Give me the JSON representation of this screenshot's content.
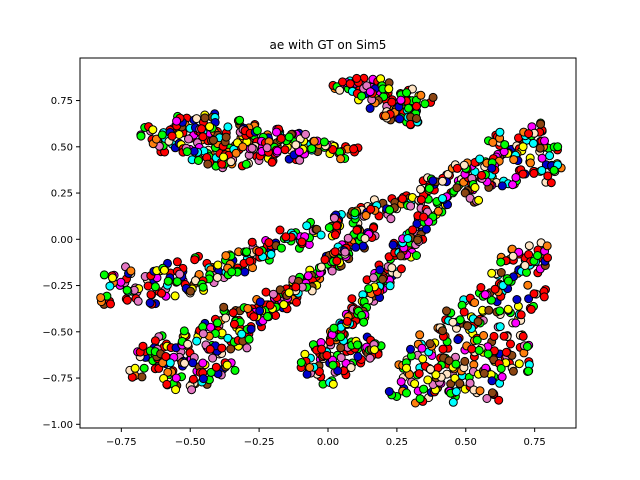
{
  "chart_data": {
    "type": "scatter",
    "title": "ae with GT on Sim5",
    "xlabel": "",
    "ylabel": "",
    "xlim": [
      -0.9,
      0.9
    ],
    "ylim": [
      -1.02,
      0.98
    ],
    "x_ticks": [
      -0.75,
      -0.5,
      -0.25,
      0.0,
      0.25,
      0.5,
      0.75
    ],
    "x_tick_labels": [
      "−0.75",
      "−0.50",
      "−0.25",
      "0.00",
      "0.25",
      "0.50",
      "0.75"
    ],
    "y_ticks": [
      -1.0,
      -0.75,
      -0.5,
      -0.25,
      0.0,
      0.25,
      0.5,
      0.75
    ],
    "y_tick_labels": [
      "−1.00",
      "−0.75",
      "−0.50",
      "−0.25",
      "0.00",
      "0.25",
      "0.50",
      "0.75"
    ],
    "grid": false,
    "legend": "none",
    "marker_edge_color": "#000000",
    "palette": [
      "#ff0000",
      "#00ff00",
      "#0000cc",
      "#ff00ff",
      "#00ffff",
      "#ffff00",
      "#ff7f0e",
      "#8b4513",
      "#e377c2",
      "#ffe4c4",
      "#ff0000",
      "#ff0000",
      "#00ff00"
    ],
    "clusters": [
      {
        "points": [
          [
            -0.62,
            0.56
          ],
          [
            -0.55,
            0.6
          ],
          [
            -0.48,
            0.55
          ],
          [
            -0.4,
            0.58
          ],
          [
            -0.32,
            0.55
          ],
          [
            -0.24,
            0.53
          ],
          [
            -0.15,
            0.52
          ],
          [
            -0.05,
            0.5
          ],
          [
            0.05,
            0.5
          ],
          [
            -0.58,
            0.5
          ],
          [
            -0.45,
            0.48
          ],
          [
            -0.35,
            0.5
          ],
          [
            -0.25,
            0.47
          ],
          [
            -0.12,
            0.46
          ],
          [
            -0.5,
            0.63
          ],
          [
            -0.42,
            0.65
          ],
          [
            -0.3,
            0.6
          ],
          [
            -0.2,
            0.58
          ],
          [
            -0.38,
            0.42
          ],
          [
            -0.28,
            0.43
          ],
          [
            -0.65,
            0.58
          ],
          [
            -0.52,
            0.52
          ],
          [
            -0.44,
            0.61
          ],
          [
            -0.36,
            0.46
          ],
          [
            -0.18,
            0.5
          ],
          [
            -0.08,
            0.55
          ],
          [
            0.0,
            0.48
          ],
          [
            -0.46,
            0.44
          ],
          [
            -0.56,
            0.57
          ],
          [
            -0.33,
            0.62
          ],
          [
            -0.22,
            0.45
          ],
          [
            -0.1,
            0.48
          ],
          [
            -0.6,
            0.53
          ],
          [
            -0.5,
            0.46
          ],
          [
            -0.41,
            0.52
          ],
          [
            -0.3,
            0.52
          ],
          [
            -0.16,
            0.55
          ],
          [
            -0.03,
            0.52
          ],
          [
            0.08,
            0.47
          ],
          [
            -0.53,
            0.64
          ],
          [
            -0.4,
            0.55
          ],
          [
            -0.27,
            0.56
          ],
          [
            -0.47,
            0.58
          ],
          [
            -0.35,
            0.44
          ],
          [
            -0.2,
            0.5
          ]
        ]
      },
      {
        "points": [
          [
            0.05,
            0.82
          ],
          [
            0.1,
            0.85
          ],
          [
            0.15,
            0.8
          ],
          [
            0.2,
            0.78
          ],
          [
            0.25,
            0.72
          ],
          [
            0.28,
            0.65
          ],
          [
            0.3,
            0.7
          ],
          [
            0.18,
            0.74
          ],
          [
            0.12,
            0.82
          ],
          [
            0.22,
            0.68
          ],
          [
            0.32,
            0.63
          ],
          [
            0.08,
            0.86
          ],
          [
            0.26,
            0.76
          ],
          [
            0.3,
            0.78
          ],
          [
            0.16,
            0.84
          ],
          [
            0.24,
            0.66
          ],
          [
            0.2,
            0.82
          ],
          [
            0.28,
            0.72
          ],
          [
            0.35,
            0.75
          ],
          [
            0.14,
            0.78
          ]
        ]
      },
      {
        "points": [
          [
            -0.8,
            -0.32
          ],
          [
            -0.72,
            -0.25
          ],
          [
            -0.65,
            -0.22
          ],
          [
            -0.55,
            -0.15
          ],
          [
            -0.45,
            -0.12
          ],
          [
            -0.35,
            -0.08
          ],
          [
            -0.25,
            -0.04
          ],
          [
            -0.15,
            0.02
          ],
          [
            -0.05,
            0.06
          ],
          [
            0.05,
            0.1
          ],
          [
            0.15,
            0.15
          ],
          [
            0.25,
            0.2
          ],
          [
            0.35,
            0.25
          ],
          [
            0.45,
            0.32
          ],
          [
            0.55,
            0.4
          ],
          [
            0.62,
            0.45
          ],
          [
            0.7,
            0.52
          ],
          [
            0.78,
            0.5
          ],
          [
            0.8,
            0.42
          ],
          [
            0.72,
            0.38
          ],
          [
            0.62,
            0.32
          ],
          [
            0.5,
            0.28
          ],
          [
            0.42,
            0.22
          ],
          [
            -0.75,
            -0.18
          ],
          [
            -0.6,
            -0.28
          ],
          [
            -0.5,
            -0.22
          ],
          [
            -0.4,
            -0.18
          ],
          [
            -0.3,
            -0.12
          ],
          [
            -0.2,
            -0.05
          ],
          [
            -0.1,
            0.0
          ],
          [
            0.0,
            0.05
          ],
          [
            0.1,
            0.12
          ],
          [
            0.2,
            0.18
          ],
          [
            0.3,
            0.22
          ],
          [
            0.4,
            0.28
          ],
          [
            0.5,
            0.35
          ],
          [
            0.6,
            0.42
          ],
          [
            0.68,
            0.48
          ],
          [
            0.75,
            0.56
          ],
          [
            0.82,
            0.4
          ],
          [
            0.66,
            0.3
          ],
          [
            0.55,
            0.3
          ],
          [
            -0.7,
            -0.3
          ],
          [
            -0.62,
            -0.18
          ],
          [
            -0.52,
            -0.28
          ],
          [
            -0.42,
            -0.2
          ],
          [
            -0.33,
            -0.15
          ],
          [
            -0.23,
            -0.08
          ],
          [
            -0.12,
            -0.02
          ],
          [
            0.02,
            0.08
          ],
          [
            0.12,
            0.16
          ],
          [
            0.22,
            0.14
          ],
          [
            0.32,
            0.18
          ],
          [
            0.45,
            0.25
          ],
          [
            0.58,
            0.38
          ],
          [
            0.65,
            0.5
          ],
          [
            0.74,
            0.6
          ],
          [
            0.78,
            0.34
          ],
          [
            0.52,
            0.22
          ],
          [
            -0.78,
            -0.22
          ],
          [
            -0.66,
            -0.32
          ],
          [
            -0.57,
            -0.2
          ],
          [
            -0.47,
            -0.25
          ],
          [
            -0.37,
            -0.16
          ],
          [
            -0.27,
            -0.1
          ],
          [
            0.38,
            0.3
          ],
          [
            0.48,
            0.38
          ],
          [
            0.7,
            0.44
          ],
          [
            0.6,
            0.55
          ],
          [
            0.8,
            0.5
          ]
        ]
      },
      {
        "points": [
          [
            -0.12,
            -0.28
          ],
          [
            -0.05,
            -0.2
          ],
          [
            0.02,
            -0.12
          ],
          [
            0.08,
            -0.04
          ],
          [
            0.14,
            0.04
          ],
          [
            -0.18,
            -0.35
          ],
          [
            -0.1,
            -0.24
          ],
          [
            -0.02,
            -0.16
          ],
          [
            0.05,
            -0.08
          ],
          [
            0.11,
            0.0
          ],
          [
            -0.14,
            -0.32
          ],
          [
            -0.07,
            -0.22
          ],
          [
            0.0,
            -0.14
          ],
          [
            0.06,
            -0.06
          ],
          [
            0.13,
            0.02
          ],
          [
            -0.16,
            -0.3
          ],
          [
            0.03,
            -0.1
          ],
          [
            0.1,
            -0.02
          ],
          [
            -0.09,
            -0.26
          ],
          [
            -0.2,
            -0.38
          ]
        ]
      },
      {
        "points": [
          [
            0.0,
            -0.55
          ],
          [
            0.05,
            -0.48
          ],
          [
            0.1,
            -0.4
          ],
          [
            0.15,
            -0.3
          ],
          [
            0.2,
            -0.2
          ],
          [
            0.25,
            -0.1
          ],
          [
            0.3,
            0.0
          ],
          [
            0.35,
            0.1
          ],
          [
            0.38,
            0.15
          ],
          [
            -0.05,
            -0.62
          ],
          [
            0.02,
            -0.52
          ],
          [
            0.07,
            -0.44
          ],
          [
            0.12,
            -0.35
          ],
          [
            0.17,
            -0.25
          ],
          [
            0.22,
            -0.15
          ],
          [
            0.27,
            -0.05
          ],
          [
            0.32,
            0.05
          ],
          [
            0.36,
            0.12
          ],
          [
            0.0,
            -0.66
          ],
          [
            0.08,
            -0.58
          ],
          [
            0.04,
            -0.5
          ],
          [
            0.13,
            -0.38
          ],
          [
            0.18,
            -0.28
          ],
          [
            0.24,
            -0.18
          ],
          [
            0.29,
            -0.08
          ],
          [
            0.33,
            0.02
          ],
          [
            -0.02,
            -0.58
          ],
          [
            0.1,
            -0.45
          ],
          [
            0.2,
            -0.22
          ],
          [
            0.3,
            -0.02
          ]
        ]
      },
      {
        "points": [
          [
            -0.68,
            -0.62
          ],
          [
            -0.6,
            -0.55
          ],
          [
            -0.5,
            -0.5
          ],
          [
            -0.42,
            -0.45
          ],
          [
            -0.35,
            -0.4
          ],
          [
            -0.28,
            -0.36
          ],
          [
            -0.22,
            -0.32
          ],
          [
            -0.15,
            -0.28
          ],
          [
            -0.62,
            -0.68
          ],
          [
            -0.55,
            -0.62
          ],
          [
            -0.45,
            -0.58
          ],
          [
            -0.38,
            -0.52
          ],
          [
            -0.3,
            -0.48
          ],
          [
            -0.25,
            -0.44
          ],
          [
            -0.55,
            -0.72
          ],
          [
            -0.48,
            -0.68
          ],
          [
            -0.4,
            -0.62
          ],
          [
            -0.32,
            -0.58
          ],
          [
            -0.7,
            -0.72
          ],
          [
            -0.58,
            -0.76
          ],
          [
            -0.46,
            -0.75
          ],
          [
            -0.36,
            -0.68
          ],
          [
            -0.65,
            -0.58
          ],
          [
            -0.52,
            -0.56
          ],
          [
            -0.44,
            -0.5
          ],
          [
            -0.34,
            -0.45
          ],
          [
            -0.26,
            -0.4
          ],
          [
            -0.18,
            -0.35
          ],
          [
            -0.6,
            -0.64
          ],
          [
            -0.5,
            -0.64
          ],
          [
            -0.42,
            -0.56
          ],
          [
            -0.3,
            -0.52
          ],
          [
            -0.52,
            -0.78
          ],
          [
            -0.42,
            -0.72
          ]
        ]
      },
      {
        "points": [
          [
            0.0,
            -0.75
          ],
          [
            0.05,
            -0.72
          ],
          [
            0.1,
            -0.68
          ],
          [
            0.15,
            -0.62
          ],
          [
            -0.05,
            -0.7
          ],
          [
            0.02,
            -0.65
          ],
          [
            0.08,
            -0.6
          ],
          [
            0.12,
            -0.55
          ],
          [
            -0.08,
            -0.66
          ],
          [
            0.18,
            -0.58
          ]
        ]
      },
      {
        "points": [
          [
            0.25,
            -0.82
          ],
          [
            0.3,
            -0.75
          ],
          [
            0.35,
            -0.7
          ],
          [
            0.4,
            -0.62
          ],
          [
            0.45,
            -0.55
          ],
          [
            0.5,
            -0.48
          ],
          [
            0.55,
            -0.4
          ],
          [
            0.6,
            -0.32
          ],
          [
            0.65,
            -0.25
          ],
          [
            0.7,
            -0.18
          ],
          [
            0.75,
            -0.1
          ],
          [
            0.78,
            -0.05
          ],
          [
            0.35,
            -0.85
          ],
          [
            0.42,
            -0.8
          ],
          [
            0.48,
            -0.75
          ],
          [
            0.55,
            -0.7
          ],
          [
            0.62,
            -0.65
          ],
          [
            0.68,
            -0.6
          ],
          [
            0.72,
            -0.55
          ],
          [
            0.6,
            -0.75
          ],
          [
            0.52,
            -0.8
          ],
          [
            0.45,
            -0.85
          ],
          [
            0.38,
            -0.78
          ],
          [
            0.44,
            -0.65
          ],
          [
            0.5,
            -0.6
          ],
          [
            0.56,
            -0.55
          ],
          [
            0.62,
            -0.5
          ],
          [
            0.68,
            -0.42
          ],
          [
            0.72,
            -0.35
          ],
          [
            0.76,
            -0.28
          ],
          [
            0.7,
            -0.05
          ],
          [
            0.74,
            -0.15
          ],
          [
            0.66,
            -0.12
          ],
          [
            0.62,
            -0.2
          ],
          [
            0.58,
            -0.28
          ],
          [
            0.52,
            -0.35
          ],
          [
            0.46,
            -0.42
          ],
          [
            0.42,
            -0.48
          ],
          [
            0.36,
            -0.55
          ],
          [
            0.32,
            -0.62
          ],
          [
            0.28,
            -0.7
          ],
          [
            0.65,
            -0.7
          ],
          [
            0.7,
            -0.68
          ],
          [
            0.58,
            -0.62
          ],
          [
            0.48,
            -0.68
          ],
          [
            0.4,
            -0.72
          ],
          [
            0.54,
            -0.45
          ],
          [
            0.64,
            -0.38
          ],
          [
            0.78,
            -0.12
          ],
          [
            0.6,
            -0.85
          ]
        ]
      }
    ]
  }
}
